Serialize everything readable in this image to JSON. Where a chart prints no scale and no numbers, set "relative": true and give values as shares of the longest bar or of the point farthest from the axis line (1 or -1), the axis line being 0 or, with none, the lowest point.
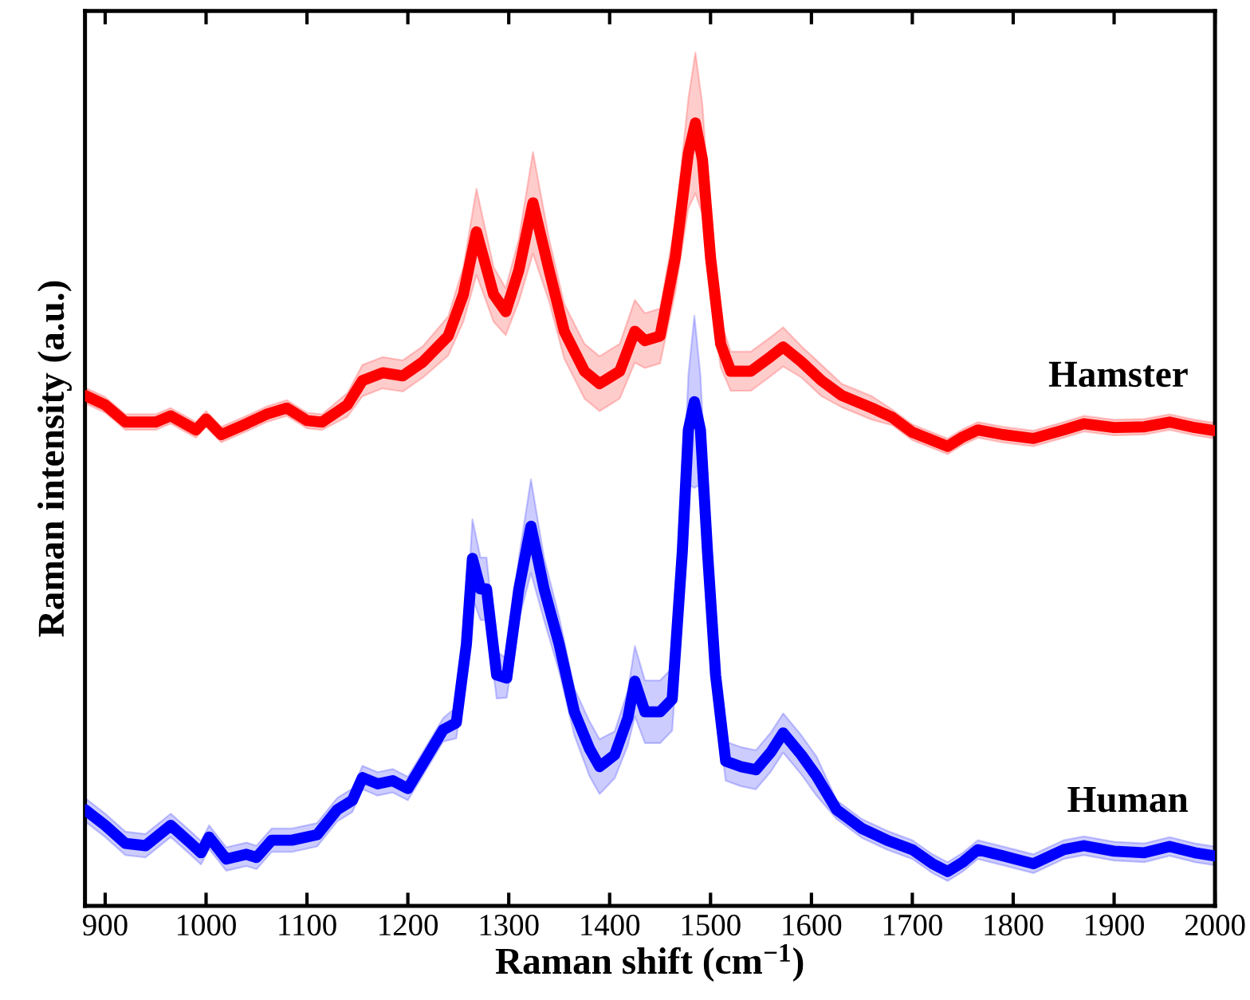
{
  "chart_data": {
    "type": "line",
    "relative": true,
    "xlabel": "Raman shift (cm$^{−1}$)",
    "ylabel": "Raman intensity (a.u.)",
    "xlim": [
      880,
      2000
    ],
    "xticks": [
      900,
      1000,
      1100,
      1200,
      1300,
      1400,
      1500,
      1600,
      1700,
      1800,
      1900,
      2000
    ],
    "tick_labels": "x",
    "grid": false,
    "legend": false,
    "marker": "none",
    "line_style": "solid",
    "series": [
      {
        "name": "Hamster",
        "color": "#ff0000",
        "x": [
          880,
          900,
          920,
          950,
          965,
          990,
          1000,
          1015,
          1040,
          1060,
          1080,
          1100,
          1115,
          1140,
          1155,
          1175,
          1195,
          1215,
          1240,
          1255,
          1268,
          1285,
          1297,
          1310,
          1324,
          1340,
          1355,
          1375,
          1390,
          1410,
          1425,
          1435,
          1450,
          1465,
          1478,
          1485,
          1492,
          1500,
          1510,
          1520,
          1540,
          1560,
          1572,
          1590,
          1610,
          1630,
          1660,
          1680,
          1700,
          1735,
          1750,
          1765,
          1790,
          1820,
          1850,
          1870,
          1900,
          1930,
          1955,
          1980,
          2000
        ],
        "values": [
          0.652,
          0.64,
          0.618,
          0.618,
          0.626,
          0.608,
          0.622,
          0.602,
          0.616,
          0.628,
          0.636,
          0.62,
          0.618,
          0.64,
          0.671,
          0.681,
          0.677,
          0.695,
          0.728,
          0.781,
          0.861,
          0.781,
          0.759,
          0.812,
          0.898,
          0.812,
          0.734,
          0.683,
          0.667,
          0.683,
          0.734,
          0.722,
          0.728,
          0.828,
          0.961,
          1.0,
          0.953,
          0.828,
          0.718,
          0.683,
          0.683,
          0.702,
          0.714,
          0.695,
          0.671,
          0.652,
          0.636,
          0.624,
          0.605,
          0.587,
          0.599,
          0.608,
          0.602,
          0.597,
          0.608,
          0.616,
          0.611,
          0.612,
          0.618,
          0.611,
          0.607
        ],
        "upper": [
          0.662,
          0.65,
          0.628,
          0.628,
          0.636,
          0.618,
          0.632,
          0.612,
          0.626,
          0.638,
          0.646,
          0.63,
          0.628,
          0.655,
          0.691,
          0.701,
          0.697,
          0.715,
          0.753,
          0.816,
          0.916,
          0.816,
          0.789,
          0.852,
          0.963,
          0.852,
          0.769,
          0.718,
          0.702,
          0.718,
          0.774,
          0.757,
          0.763,
          0.873,
          1.031,
          1.09,
          1.023,
          0.873,
          0.748,
          0.708,
          0.708,
          0.727,
          0.739,
          0.715,
          0.691,
          0.667,
          0.651,
          0.634,
          0.615,
          0.597,
          0.609,
          0.618,
          0.612,
          0.607,
          0.618,
          0.626,
          0.621,
          0.622,
          0.628,
          0.621,
          0.617
        ],
        "lower": [
          0.642,
          0.63,
          0.608,
          0.608,
          0.616,
          0.598,
          0.612,
          0.592,
          0.606,
          0.618,
          0.626,
          0.61,
          0.608,
          0.625,
          0.651,
          0.661,
          0.657,
          0.675,
          0.703,
          0.746,
          0.806,
          0.746,
          0.729,
          0.772,
          0.833,
          0.772,
          0.699,
          0.648,
          0.632,
          0.648,
          0.694,
          0.687,
          0.693,
          0.783,
          0.891,
          0.91,
          0.883,
          0.783,
          0.688,
          0.658,
          0.658,
          0.677,
          0.689,
          0.675,
          0.651,
          0.637,
          0.621,
          0.614,
          0.595,
          0.577,
          0.589,
          0.598,
          0.592,
          0.587,
          0.598,
          0.606,
          0.601,
          0.602,
          0.608,
          0.601,
          0.597
        ]
      },
      {
        "name": "Human",
        "color": "#0000ff",
        "x": [
          880,
          900,
          920,
          940,
          965,
          985,
          995,
          1003,
          1020,
          1040,
          1050,
          1065,
          1085,
          1110,
          1130,
          1145,
          1155,
          1170,
          1185,
          1200,
          1215,
          1235,
          1248,
          1258,
          1264,
          1272,
          1278,
          1288,
          1298,
          1310,
          1322,
          1335,
          1350,
          1365,
          1380,
          1390,
          1405,
          1418,
          1425,
          1435,
          1450,
          1462,
          1472,
          1478,
          1484,
          1490,
          1497,
          1505,
          1515,
          1530,
          1545,
          1560,
          1572,
          1590,
          1605,
          1625,
          1650,
          1675,
          1700,
          1720,
          1735,
          1750,
          1765,
          1790,
          1820,
          1850,
          1870,
          1900,
          1930,
          1955,
          1980,
          2000
        ],
        "values": [
          0.123,
          0.103,
          0.08,
          0.077,
          0.103,
          0.08,
          0.068,
          0.088,
          0.06,
          0.066,
          0.062,
          0.084,
          0.084,
          0.091,
          0.123,
          0.135,
          0.164,
          0.156,
          0.16,
          0.15,
          0.182,
          0.225,
          0.234,
          0.334,
          0.444,
          0.405,
          0.405,
          0.295,
          0.291,
          0.405,
          0.485,
          0.405,
          0.334,
          0.248,
          0.201,
          0.178,
          0.193,
          0.24,
          0.287,
          0.248,
          0.248,
          0.264,
          0.452,
          0.608,
          0.644,
          0.608,
          0.452,
          0.295,
          0.185,
          0.178,
          0.174,
          0.197,
          0.221,
          0.193,
          0.166,
          0.123,
          0.099,
          0.084,
          0.072,
          0.054,
          0.044,
          0.056,
          0.072,
          0.064,
          0.054,
          0.072,
          0.077,
          0.07,
          0.068,
          0.076,
          0.068,
          0.064
        ],
        "upper": [
          0.138,
          0.118,
          0.095,
          0.092,
          0.118,
          0.095,
          0.083,
          0.103,
          0.075,
          0.081,
          0.077,
          0.099,
          0.099,
          0.106,
          0.138,
          0.15,
          0.179,
          0.171,
          0.175,
          0.165,
          0.197,
          0.24,
          0.254,
          0.364,
          0.494,
          0.445,
          0.445,
          0.325,
          0.316,
          0.445,
          0.545,
          0.445,
          0.369,
          0.278,
          0.236,
          0.213,
          0.223,
          0.275,
          0.332,
          0.288,
          0.288,
          0.304,
          0.502,
          0.678,
          0.754,
          0.678,
          0.502,
          0.325,
          0.21,
          0.203,
          0.199,
          0.222,
          0.246,
          0.218,
          0.191,
          0.135,
          0.111,
          0.096,
          0.084,
          0.066,
          0.056,
          0.068,
          0.084,
          0.076,
          0.066,
          0.084,
          0.089,
          0.082,
          0.08,
          0.088,
          0.08,
          0.076
        ],
        "lower": [
          0.108,
          0.088,
          0.065,
          0.062,
          0.088,
          0.065,
          0.053,
          0.073,
          0.045,
          0.051,
          0.047,
          0.069,
          0.069,
          0.076,
          0.108,
          0.12,
          0.149,
          0.141,
          0.145,
          0.135,
          0.167,
          0.21,
          0.214,
          0.304,
          0.394,
          0.365,
          0.365,
          0.265,
          0.266,
          0.365,
          0.425,
          0.365,
          0.299,
          0.218,
          0.166,
          0.143,
          0.163,
          0.205,
          0.242,
          0.208,
          0.208,
          0.224,
          0.402,
          0.538,
          0.534,
          0.538,
          0.402,
          0.265,
          0.16,
          0.153,
          0.149,
          0.172,
          0.196,
          0.168,
          0.141,
          0.111,
          0.087,
          0.072,
          0.06,
          0.042,
          0.032,
          0.044,
          0.06,
          0.052,
          0.042,
          0.06,
          0.065,
          0.058,
          0.056,
          0.064,
          0.056,
          0.052
        ]
      }
    ]
  }
}
